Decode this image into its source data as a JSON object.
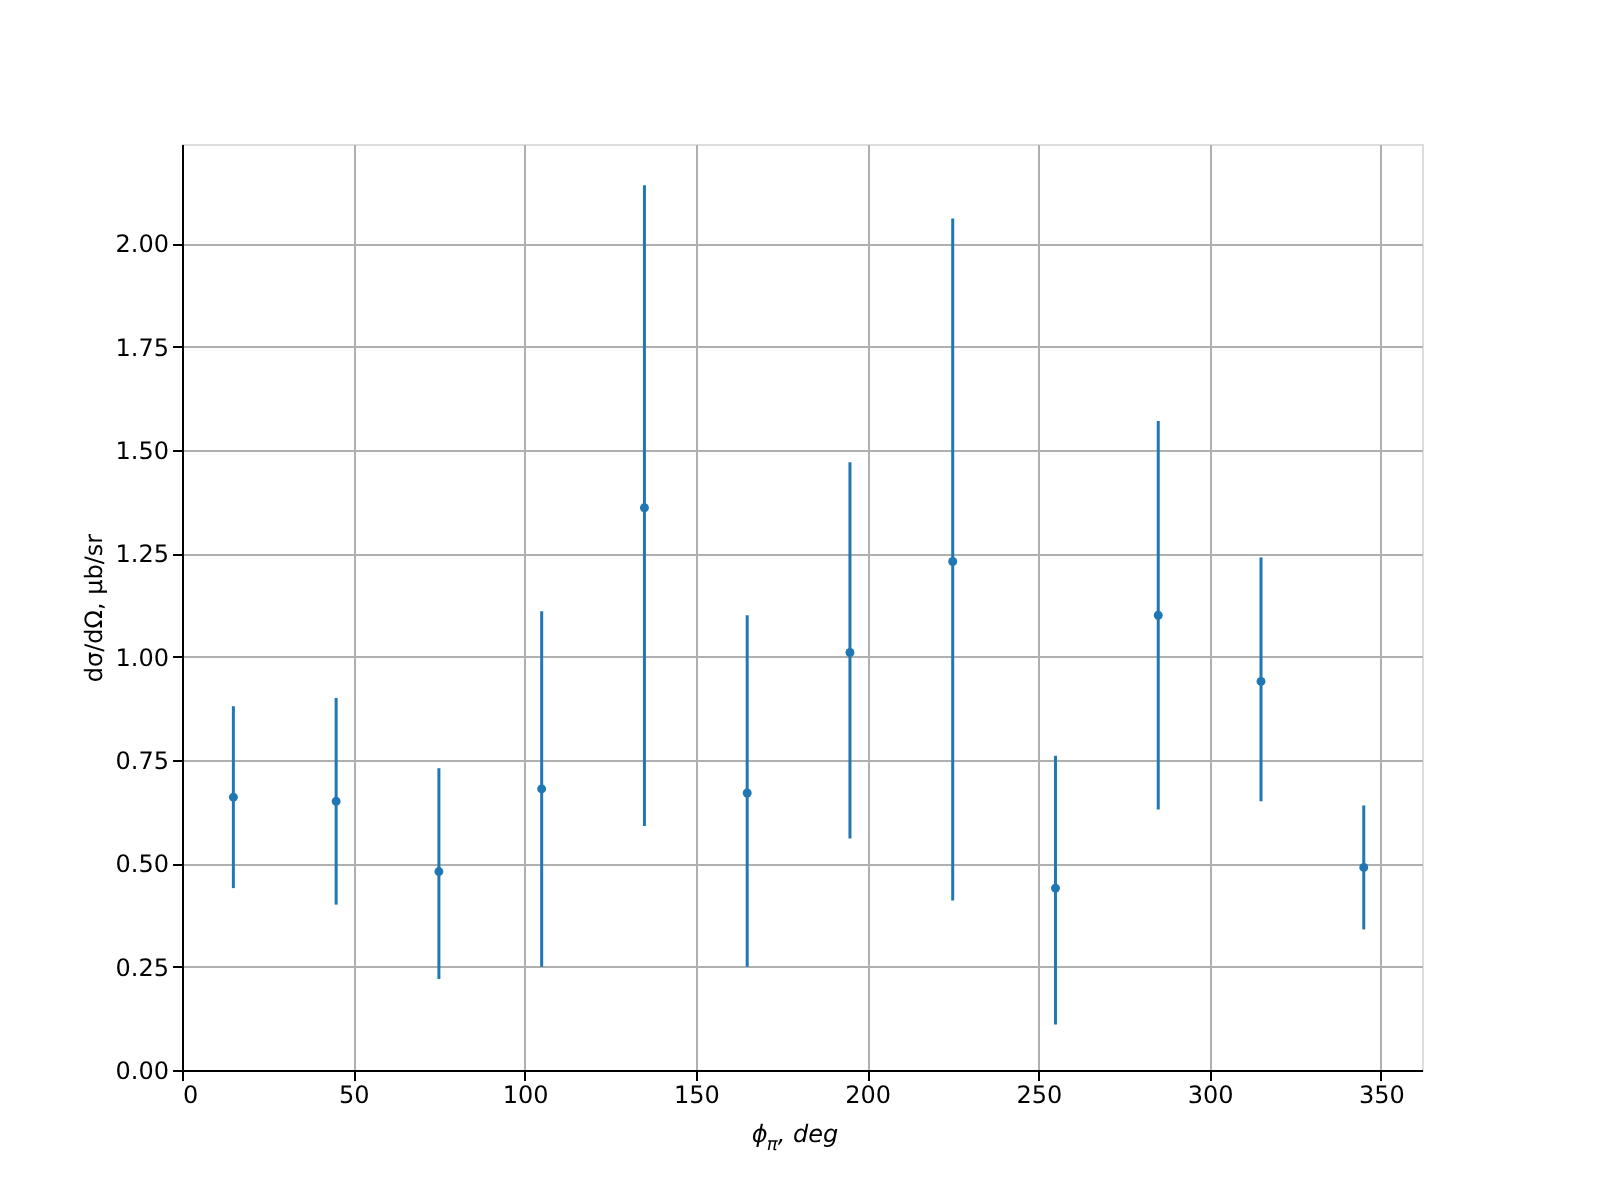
{
  "chart_data": {
    "type": "scatter",
    "xlabel": "ϕ$_{π}$, deg",
    "ylabel": "dσ/dΩ, μb/sr",
    "x": [
      15,
      45,
      75,
      105,
      135,
      165,
      195,
      225,
      255,
      285,
      315,
      345
    ],
    "series": [
      {
        "color": "#1f77b4",
        "values": [
          0.66,
          0.65,
          0.48,
          0.68,
          1.36,
          0.67,
          1.01,
          1.23,
          0.44,
          1.1,
          0.94,
          0.49
        ],
        "errors": [
          [
            0.44,
            0.88
          ],
          [
            0.4,
            0.9
          ],
          [
            0.22,
            0.73
          ],
          [
            0.25,
            1.11
          ],
          [
            0.59,
            2.14
          ],
          [
            0.25,
            1.1
          ],
          [
            0.56,
            1.47
          ],
          [
            0.41,
            2.06
          ],
          [
            0.11,
            0.76
          ],
          [
            0.63,
            1.57
          ],
          [
            0.65,
            1.24
          ],
          [
            0.34,
            0.64
          ]
        ]
      }
    ],
    "xlim": [
      0,
      362
    ],
    "ylim": [
      0,
      2.24
    ],
    "xticks": [
      0,
      50,
      100,
      150,
      200,
      250,
      300,
      350
    ],
    "yticks": [
      {
        "value": 0,
        "label": "0.00"
      },
      0.25,
      {
        "value": 0.5,
        "label": "0.50"
      },
      0.75,
      {
        "value": 1,
        "label": "1.00"
      },
      1.25,
      {
        "value": 1.5,
        "label": "1.50"
      },
      1.75,
      {
        "value": 2,
        "label": "2.00"
      }
    ],
    "grid": true,
    "marker": "circle"
  }
}
